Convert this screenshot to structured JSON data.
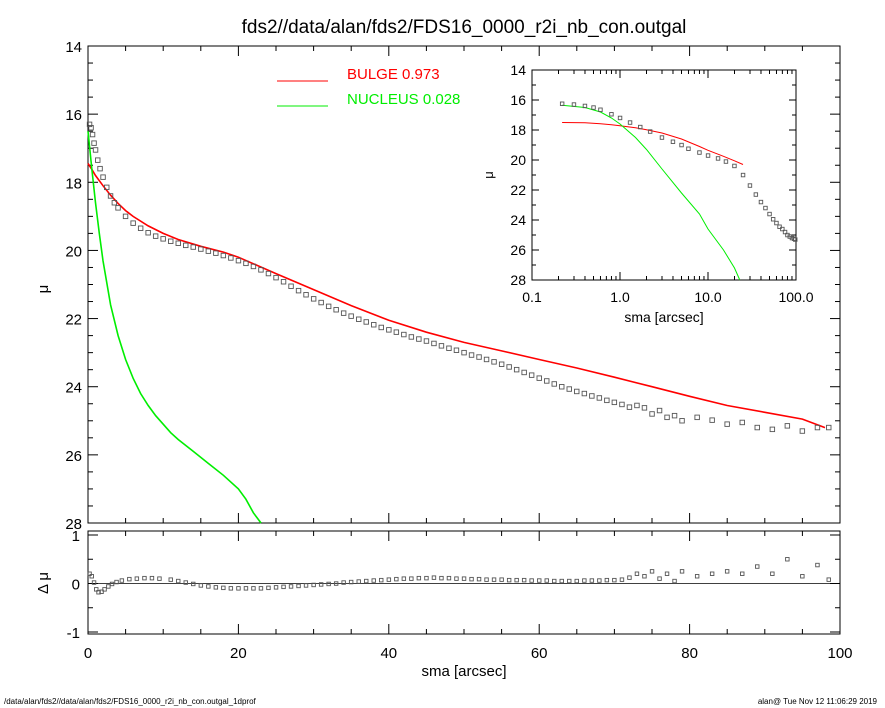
{
  "title": "fds2//data/alan/fds2/FDS16_0000_r2i_nb_con.outgal",
  "footer": {
    "left": "/data/alan/fds2//data/alan/fds2/FDS16_0000_r2i_nb_con.outgal_1dprof",
    "right": "alan@  Tue Nov 12 11:06:29 2019"
  },
  "colors": {
    "bulge": "#ff0000",
    "nucleus": "#00ee00",
    "data": "#555555",
    "axis": "#000000"
  },
  "legend": [
    {
      "label": "BULGE  0.973",
      "color": "#ff0000"
    },
    {
      "label": "NUCLEUS  0.028",
      "color": "#00ee00"
    }
  ],
  "chart_data": [
    {
      "type": "scatter",
      "panel": "main",
      "xlabel": "",
      "ylabel": "μ",
      "xlim": [
        0,
        100
      ],
      "ylim": [
        28,
        14
      ],
      "yticks": [
        "14",
        "16",
        "18",
        "20",
        "22",
        "24",
        "26",
        "28"
      ],
      "legend_placement": "top-center",
      "series": [
        {
          "name": "BULGE  0.973",
          "kind": "line",
          "x": [
            0,
            0.5,
            1,
            2,
            3,
            4,
            5,
            6,
            8,
            10,
            12,
            15,
            18,
            20,
            25,
            30,
            35,
            40,
            45,
            50,
            55,
            60,
            65,
            70,
            75,
            80,
            85,
            90,
            95,
            98
          ],
          "y": [
            17.45,
            17.62,
            17.8,
            18.1,
            18.38,
            18.62,
            18.83,
            19.0,
            19.28,
            19.5,
            19.68,
            19.88,
            20.05,
            20.2,
            20.68,
            21.15,
            21.62,
            22.05,
            22.4,
            22.7,
            22.95,
            23.2,
            23.45,
            23.72,
            24.0,
            24.28,
            24.55,
            24.75,
            24.95,
            25.2
          ]
        },
        {
          "name": "NUCLEUS  0.028",
          "kind": "line",
          "x": [
            0,
            0.5,
            1,
            1.5,
            2,
            3,
            4,
            5,
            6,
            7,
            8,
            9,
            10,
            11,
            12,
            14,
            16,
            18,
            20,
            21,
            22,
            23
          ],
          "y": [
            16.5,
            17.6,
            18.6,
            19.5,
            20.3,
            21.6,
            22.5,
            23.2,
            23.75,
            24.2,
            24.55,
            24.85,
            25.1,
            25.35,
            25.55,
            25.9,
            26.25,
            26.6,
            27.0,
            27.3,
            27.7,
            28.1
          ]
        },
        {
          "name": "",
          "kind": "markers",
          "x": [
            0.2,
            0.4,
            0.6,
            0.8,
            1,
            1.3,
            1.6,
            2,
            2.5,
            3,
            3.5,
            4,
            5,
            6,
            7,
            8,
            9,
            10,
            11,
            12,
            13,
            14,
            15,
            16,
            17,
            18,
            19,
            20,
            21,
            22,
            23,
            24,
            25,
            26,
            27,
            28,
            29,
            30,
            31,
            32,
            33,
            34,
            35,
            36,
            37,
            38,
            39,
            40,
            41,
            42,
            43,
            44,
            45,
            46,
            47,
            48,
            49,
            50,
            51,
            52,
            53,
            54,
            55,
            56,
            57,
            58,
            59,
            60,
            61,
            62,
            63,
            64,
            65,
            66,
            67,
            68,
            69,
            70,
            71,
            72,
            73,
            74,
            75,
            76,
            77,
            78,
            79,
            81,
            83,
            85,
            87,
            89,
            91,
            93,
            95,
            97,
            98.5
          ],
          "y": [
            16.3,
            16.4,
            16.6,
            16.85,
            17.05,
            17.35,
            17.6,
            17.85,
            18.15,
            18.4,
            18.6,
            18.75,
            19.0,
            19.2,
            19.35,
            19.48,
            19.58,
            19.66,
            19.73,
            19.79,
            19.85,
            19.9,
            19.96,
            20.02,
            20.08,
            20.15,
            20.22,
            20.3,
            20.38,
            20.47,
            20.57,
            20.68,
            20.8,
            20.92,
            21.05,
            21.18,
            21.3,
            21.42,
            21.53,
            21.64,
            21.74,
            21.84,
            21.93,
            22.02,
            22.1,
            22.18,
            22.26,
            22.33,
            22.4,
            22.47,
            22.54,
            22.6,
            22.66,
            22.73,
            22.8,
            22.87,
            22.93,
            23.0,
            23.07,
            23.13,
            23.2,
            23.27,
            23.34,
            23.42,
            23.5,
            23.58,
            23.66,
            23.75,
            23.83,
            23.92,
            24.0,
            24.07,
            24.14,
            24.2,
            24.27,
            24.33,
            24.4,
            24.46,
            24.52,
            24.6,
            24.55,
            24.62,
            24.8,
            24.7,
            24.9,
            24.85,
            25.0,
            24.9,
            24.98,
            25.1,
            25.05,
            25.2,
            25.25,
            25.15,
            25.3,
            25.2,
            25.2
          ]
        }
      ]
    },
    {
      "type": "scatter",
      "panel": "inset",
      "xscale": "log",
      "xlabel": "sma [arcsec]",
      "ylabel": "μ",
      "xlim": [
        0.1,
        100
      ],
      "ylim": [
        28,
        14
      ],
      "xticks": [
        "0.1",
        "1.0",
        "10.0",
        "100.0"
      ],
      "yticks": [
        "14",
        "16",
        "18",
        "20",
        "22",
        "24",
        "26",
        "28"
      ],
      "series": [
        {
          "name": "BULGE",
          "kind": "line",
          "x": [
            0.22,
            0.4,
            0.6,
            0.8,
            1.0,
            1.5,
            2,
            3,
            5,
            8,
            10,
            15,
            20,
            25
          ],
          "y": [
            17.5,
            17.52,
            17.58,
            17.65,
            17.72,
            17.85,
            17.98,
            18.2,
            18.6,
            19.1,
            19.35,
            19.75,
            20.05,
            20.3
          ]
        },
        {
          "name": "NUCLEUS",
          "kind": "line",
          "x": [
            0.22,
            0.4,
            0.6,
            0.8,
            1.0,
            1.5,
            2,
            3,
            5,
            8,
            10,
            15,
            20,
            23
          ],
          "y": [
            16.35,
            16.5,
            16.8,
            17.2,
            17.6,
            18.5,
            19.3,
            20.6,
            22.2,
            23.6,
            24.6,
            26.0,
            27.2,
            28.0
          ]
        },
        {
          "name": "",
          "kind": "markers",
          "x": [
            0.22,
            0.3,
            0.4,
            0.5,
            0.6,
            0.8,
            1.0,
            1.3,
            1.7,
            2.2,
            3,
            4,
            5,
            6,
            8,
            10,
            13,
            16,
            20,
            25,
            30,
            35,
            40,
            45,
            50,
            55,
            60,
            65,
            70,
            75,
            80,
            85,
            90,
            95,
            98
          ],
          "y": [
            16.25,
            16.3,
            16.4,
            16.5,
            16.65,
            16.95,
            17.2,
            17.5,
            17.8,
            18.1,
            18.5,
            18.78,
            19.0,
            19.25,
            19.5,
            19.7,
            19.9,
            20.1,
            20.4,
            21.0,
            21.7,
            22.3,
            22.8,
            23.2,
            23.6,
            23.95,
            24.2,
            24.45,
            24.6,
            24.8,
            25.0,
            25.1,
            25.2,
            25.25,
            25.3
          ]
        }
      ]
    },
    {
      "type": "scatter",
      "panel": "residual",
      "xlabel": "sma [arcsec]",
      "ylabel": "Δ μ",
      "xlim": [
        0,
        100
      ],
      "ylim": [
        -1,
        1
      ],
      "xticks": [
        "0",
        "20",
        "40",
        "60",
        "80",
        "100"
      ],
      "yticks": [
        "1",
        "0",
        "-1"
      ],
      "series": [
        {
          "name": "",
          "kind": "markers",
          "x": [
            0.2,
            0.5,
            0.8,
            1.1,
            1.4,
            1.8,
            2.2,
            2.7,
            3.2,
            3.8,
            4.5,
            5.5,
            6.5,
            7.5,
            8.5,
            9.5,
            11,
            12,
            13,
            14,
            15,
            16,
            17,
            18,
            19,
            20,
            21,
            22,
            23,
            24,
            25,
            26,
            27,
            28,
            29,
            30,
            31,
            32,
            33,
            34,
            35,
            36,
            37,
            38,
            39,
            40,
            41,
            42,
            43,
            44,
            45,
            46,
            47,
            48,
            49,
            50,
            51,
            52,
            53,
            54,
            55,
            56,
            57,
            58,
            59,
            60,
            61,
            62,
            63,
            64,
            65,
            66,
            67,
            68,
            69,
            70,
            71,
            72,
            73,
            74,
            75,
            76,
            77,
            78,
            79,
            81,
            83,
            85,
            87,
            89,
            91,
            93,
            95,
            97,
            98.5
          ],
          "y": [
            0.2,
            0.15,
            0.02,
            -0.12,
            -0.18,
            -0.17,
            -0.12,
            -0.06,
            -0.01,
            0.03,
            0.06,
            0.09,
            0.1,
            0.11,
            0.11,
            0.1,
            0.08,
            0.05,
            0.02,
            -0.01,
            -0.04,
            -0.06,
            -0.08,
            -0.09,
            -0.1,
            -0.1,
            -0.1,
            -0.1,
            -0.1,
            -0.09,
            -0.08,
            -0.07,
            -0.06,
            -0.05,
            -0.04,
            -0.03,
            -0.02,
            -0.01,
            0.0,
            0.02,
            0.03,
            0.04,
            0.05,
            0.06,
            0.07,
            0.08,
            0.09,
            0.1,
            0.1,
            0.11,
            0.11,
            0.12,
            0.11,
            0.11,
            0.1,
            0.1,
            0.09,
            0.09,
            0.08,
            0.08,
            0.08,
            0.07,
            0.07,
            0.07,
            0.06,
            0.06,
            0.06,
            0.05,
            0.05,
            0.05,
            0.05,
            0.06,
            0.06,
            0.06,
            0.07,
            0.07,
            0.08,
            0.12,
            0.2,
            0.15,
            0.25,
            0.1,
            0.2,
            0.05,
            0.25,
            0.15,
            0.2,
            0.25,
            0.2,
            0.35,
            0.2,
            0.5,
            0.15,
            0.38,
            0.08
          ]
        }
      ]
    }
  ]
}
